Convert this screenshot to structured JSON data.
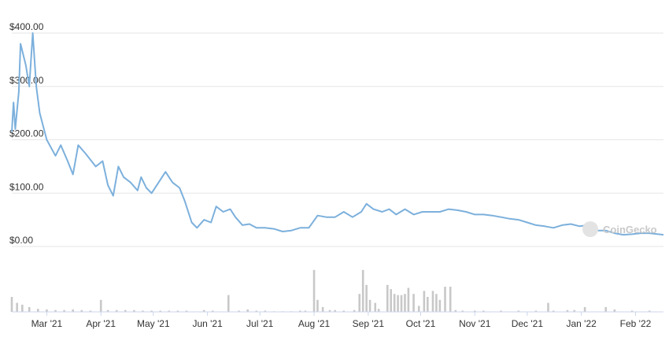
{
  "chart_data": {
    "type": "line",
    "watermark": "CoinGecko",
    "xlim": [
      0,
      373
    ],
    "xticks": [
      {
        "value": 20,
        "label": "Mar '21"
      },
      {
        "value": 51,
        "label": "Apr '21"
      },
      {
        "value": 81,
        "label": "May '21"
      },
      {
        "value": 112,
        "label": "Jun '21"
      },
      {
        "value": 142,
        "label": "Jul '21"
      },
      {
        "value": 173,
        "label": "Aug '21"
      },
      {
        "value": 204,
        "label": "Sep '21"
      },
      {
        "value": 234,
        "label": "Oct '21"
      },
      {
        "value": 265,
        "label": "Nov '21"
      },
      {
        "value": 295,
        "label": "Dec '21"
      },
      {
        "value": 326,
        "label": "Jan '22"
      },
      {
        "value": 357,
        "label": "Feb '22"
      }
    ],
    "ylim": [
      0,
      400
    ],
    "yticks": [
      {
        "value": 0,
        "label": "$0.00"
      },
      {
        "value": 100,
        "label": "$100.00"
      },
      {
        "value": 200,
        "label": "$200.00"
      },
      {
        "value": 300,
        "label": "$300.00"
      },
      {
        "value": 400,
        "label": "$400.00"
      }
    ],
    "grid": true,
    "price": {
      "color": "#7cb0dc",
      "x": [
        0,
        1,
        2,
        4,
        5,
        8,
        10,
        12,
        14,
        16,
        20,
        25,
        28,
        32,
        35,
        38,
        42,
        48,
        52,
        55,
        58,
        61,
        64,
        68,
        72,
        74,
        77,
        80,
        84,
        88,
        92,
        96,
        99,
        101,
        103,
        106,
        110,
        114,
        117,
        121,
        125,
        128,
        132,
        136,
        140,
        145,
        150,
        155,
        160,
        165,
        170,
        175,
        180,
        185,
        190,
        195,
        200,
        203,
        207,
        212,
        216,
        220,
        225,
        230,
        235,
        240,
        245,
        250,
        255,
        260,
        265,
        270,
        275,
        280,
        285,
        290,
        295,
        300,
        305,
        310,
        315,
        320,
        325,
        330,
        335,
        340,
        345,
        350,
        355,
        360,
        365,
        370,
        373
      ],
      "values": [
        215,
        270,
        220,
        290,
        380,
        340,
        300,
        400,
        300,
        250,
        200,
        170,
        190,
        160,
        135,
        190,
        175,
        150,
        160,
        115,
        95,
        150,
        130,
        120,
        105,
        130,
        110,
        100,
        120,
        140,
        120,
        110,
        85,
        65,
        45,
        35,
        50,
        45,
        75,
        65,
        70,
        55,
        40,
        42,
        35,
        35,
        33,
        28,
        30,
        35,
        35,
        58,
        55,
        55,
        65,
        55,
        65,
        80,
        70,
        65,
        70,
        60,
        70,
        60,
        65,
        65,
        65,
        70,
        68,
        65,
        60,
        60,
        58,
        55,
        52,
        50,
        45,
        40,
        38,
        35,
        40,
        42,
        38,
        40,
        30,
        30,
        25,
        22,
        23,
        25,
        25,
        23,
        22
      ]
    },
    "volume": {
      "color": "#c8c8c8",
      "vlim": [
        0,
        100
      ],
      "x": [
        0,
        3,
        6,
        10,
        15,
        20,
        25,
        30,
        35,
        40,
        45,
        51,
        55,
        60,
        65,
        70,
        75,
        80,
        85,
        90,
        95,
        100,
        110,
        115,
        124,
        130,
        135,
        140,
        145,
        150,
        155,
        160,
        165,
        168,
        173,
        175,
        178,
        182,
        185,
        190,
        196,
        199,
        201,
        203,
        205,
        208,
        210,
        215,
        217,
        219,
        221,
        223,
        225,
        227,
        230,
        233,
        236,
        238,
        241,
        243,
        245,
        248,
        251,
        254,
        258,
        265,
        270,
        280,
        290,
        300,
        307,
        310,
        318,
        322,
        328,
        340,
        345,
        355,
        365
      ],
      "values": [
        25,
        15,
        12,
        8,
        5,
        4,
        3,
        3,
        4,
        3,
        2,
        20,
        3,
        3,
        3,
        3,
        2,
        2,
        2,
        2,
        2,
        2,
        3,
        2,
        28,
        2,
        4,
        2,
        2,
        1,
        1,
        1,
        2,
        2,
        70,
        20,
        8,
        3,
        3,
        2,
        3,
        30,
        70,
        45,
        20,
        15,
        5,
        45,
        38,
        30,
        28,
        28,
        30,
        40,
        30,
        10,
        35,
        25,
        35,
        30,
        20,
        42,
        42,
        3,
        2,
        2,
        2,
        2,
        2,
        2,
        15,
        2,
        3,
        3,
        8,
        8,
        4,
        2,
        2
      ]
    }
  }
}
